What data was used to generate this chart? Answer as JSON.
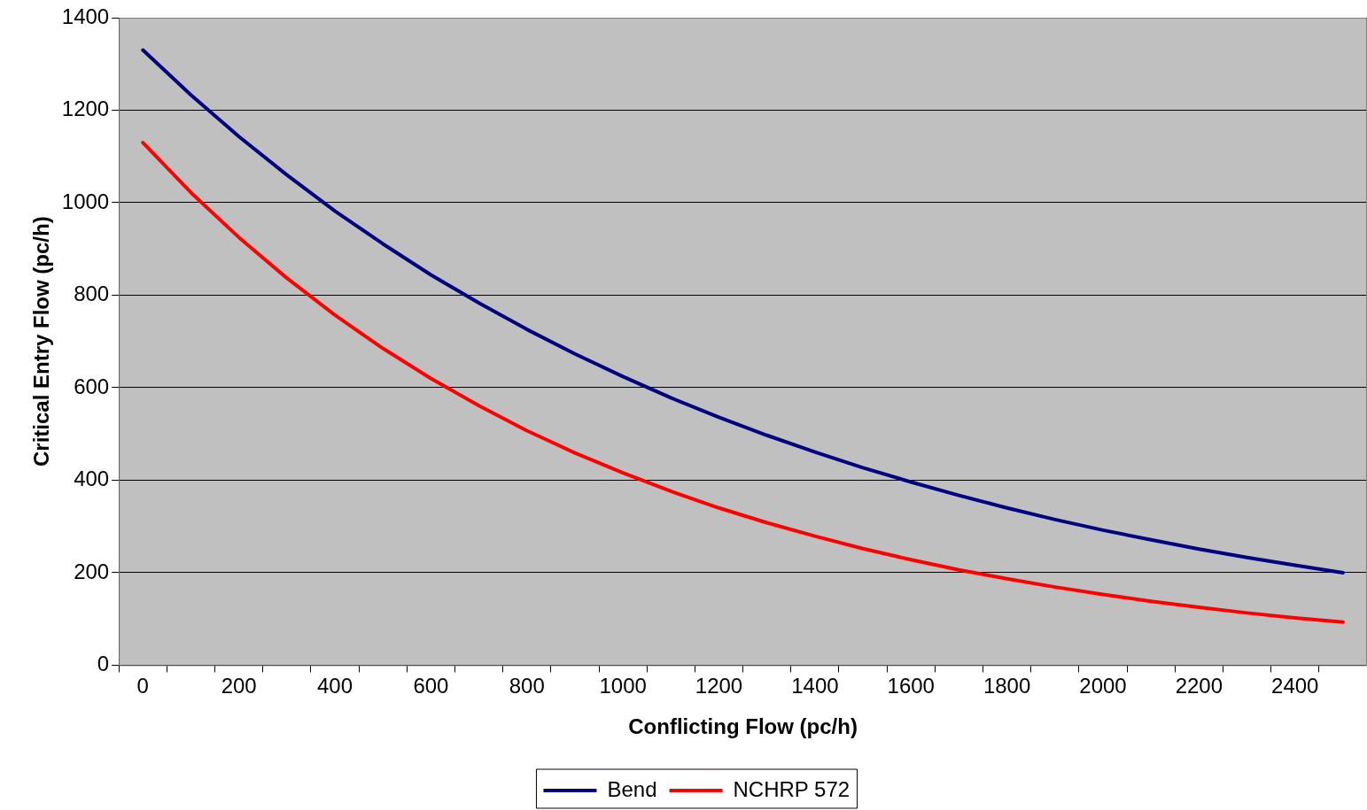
{
  "chart_data": {
    "type": "line",
    "xlabel": "Conflicting Flow (pc/h)",
    "ylabel": "Critical Entry Flow (pc/h)",
    "categories": [
      "0",
      null,
      "200",
      null,
      "400",
      null,
      "600",
      null,
      "800",
      null,
      "1000",
      null,
      "1200",
      null,
      "1400",
      null,
      "1600",
      null,
      "1800",
      null,
      "2000",
      null,
      "2200",
      null,
      "2400",
      null
    ],
    "series": [
      {
        "name": "Bend",
        "color": "#000080",
        "values": [
          1330,
          1233,
          1143,
          1060,
          982,
          911,
          844,
          783,
          726,
          673,
          624,
          578,
          536,
          497,
          461,
          427,
          396,
          367,
          340,
          315,
          292,
          271,
          251,
          233,
          216,
          200
        ]
      },
      {
        "name": "NCHRP 572",
        "color": "#ff0000",
        "values": [
          1130,
          1022,
          925,
          837,
          757,
          685,
          620,
          561,
          507,
          459,
          416,
          376,
          340,
          308,
          279,
          252,
          228,
          206,
          187,
          169,
          153,
          138,
          125,
          113,
          102,
          93
        ]
      }
    ],
    "ylim": [
      0,
      1400
    ],
    "yticks": [
      0,
      200,
      400,
      600,
      800,
      1000,
      1200,
      1400
    ],
    "grid": "y",
    "legend": "bottom",
    "marker": "none",
    "line_style": "solid"
  }
}
